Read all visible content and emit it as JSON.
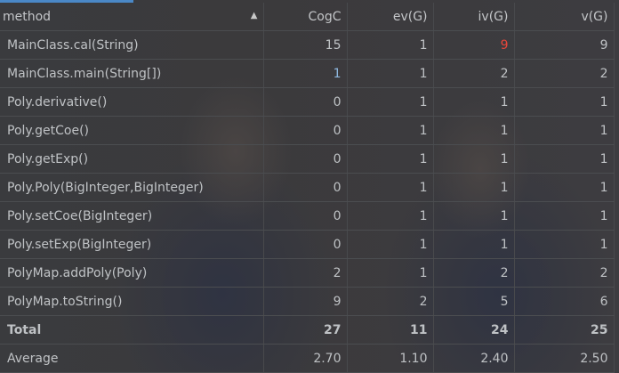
{
  "columns": [
    "method",
    "CogC",
    "ev(G)",
    "iv(G)",
    "v(G)"
  ],
  "sort_icon": "triangle-up-icon",
  "rows": [
    {
      "method": "MainClass.cal(String)",
      "CogC": "15",
      "ev": "1",
      "iv": "9",
      "v": "9"
    },
    {
      "method": "MainClass.main(String[])",
      "CogC": "1",
      "ev": "1",
      "iv": "2",
      "v": "2"
    },
    {
      "method": "Poly.derivative()",
      "CogC": "0",
      "ev": "1",
      "iv": "1",
      "v": "1"
    },
    {
      "method": "Poly.getCoe()",
      "CogC": "0",
      "ev": "1",
      "iv": "1",
      "v": "1"
    },
    {
      "method": "Poly.getExp()",
      "CogC": "0",
      "ev": "1",
      "iv": "1",
      "v": "1"
    },
    {
      "method": "Poly.Poly(BigInteger,BigInteger)",
      "CogC": "0",
      "ev": "1",
      "iv": "1",
      "v": "1"
    },
    {
      "method": "Poly.setCoe(BigInteger)",
      "CogC": "0",
      "ev": "1",
      "iv": "1",
      "v": "1"
    },
    {
      "method": "Poly.setExp(BigInteger)",
      "CogC": "0",
      "ev": "1",
      "iv": "1",
      "v": "1"
    },
    {
      "method": "PolyMap.addPoly(Poly)",
      "CogC": "2",
      "ev": "1",
      "iv": "2",
      "v": "2"
    },
    {
      "method": "PolyMap.toString()",
      "CogC": "9",
      "ev": "2",
      "iv": "5",
      "v": "6"
    }
  ],
  "total": {
    "method": "Total",
    "CogC": "27",
    "ev": "11",
    "iv": "24",
    "v": "25"
  },
  "average": {
    "method": "Average",
    "CogC": "2.70",
    "ev": "1.10",
    "iv": "2.40",
    "v": "2.50"
  },
  "colors": {
    "highlight_red": "#e8463b",
    "accent_blue": "#4a88c7"
  }
}
